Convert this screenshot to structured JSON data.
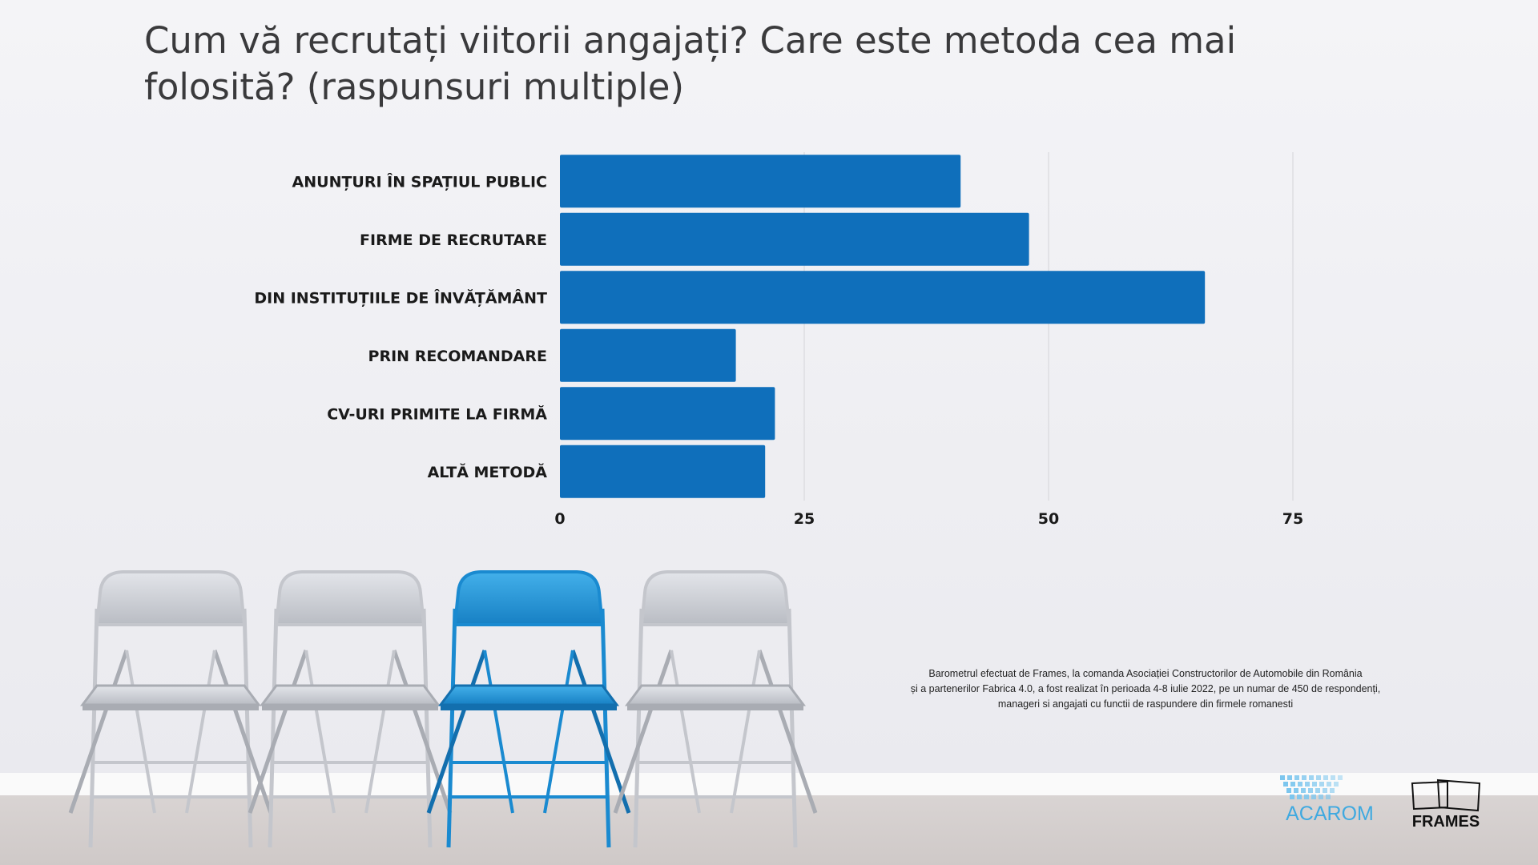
{
  "title": "Cum vă recrutați viitorii angajați? Care este metoda cea mai folosită? (raspunsuri multiple)",
  "chart_data": {
    "type": "bar",
    "orientation": "horizontal",
    "title": "Cum vă recrutați viitorii angajați? Care este metoda cea mai folosită? (raspunsuri multiple)",
    "categories": [
      "ANUNȚURI ÎN SPAȚIUL PUBLIC",
      "FIRME DE RECRUTARE",
      "DIN INSTITUȚIILE DE ÎNVĂȚĂMÂNT",
      "PRIN RECOMANDARE",
      "CV-URI PRIMITE LA FIRMĂ",
      "ALTĂ METODĂ"
    ],
    "values": [
      41,
      48,
      66,
      18,
      22,
      21
    ],
    "xlim": [
      0,
      90
    ],
    "ticks": [
      0,
      25,
      50,
      75
    ],
    "tick_labels": [
      "0",
      "25",
      "50",
      "75"
    ],
    "grid": true,
    "bar_color": "#0f6fbb"
  },
  "footnote": [
    "Barometrul efectuat de  Frames, la comanda Asociației Constructorilor de Automobile din România",
    "și a partenerilor Fabrica 4.0, a fost realizat în perioada 4-8 iulie 2022, pe un numar de 450 de respondenți,",
    "manageri si angajati cu functii de raspundere din firmele romanesti"
  ],
  "logos": {
    "acarom": "ACAROM",
    "frames": "FRAMES"
  },
  "colors": {
    "chair_grey": "#c9cbd1",
    "chair_blue": "#1f95d6",
    "acarom_blue": "#3fa9e0"
  }
}
